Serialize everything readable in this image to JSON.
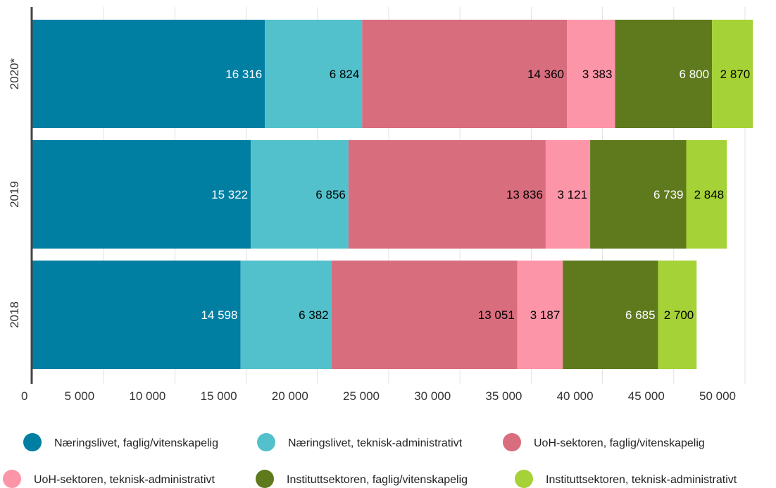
{
  "chart_data": {
    "type": "bar",
    "orientation": "horizontal",
    "stacked": true,
    "categories": [
      "2020*",
      "2019",
      "2018"
    ],
    "series": [
      {
        "name": "Næringslivet, faglig/vitenskapelig",
        "color": "#007fa3",
        "label_color": "#ffffff",
        "values": [
          16316,
          15322,
          14598
        ]
      },
      {
        "name": "Næringslivet, teknisk-administrativt",
        "color": "#52c1cc",
        "label_color": "#000000",
        "values": [
          6824,
          6856,
          6382
        ]
      },
      {
        "name": "UoH-sektoren, faglig/vitenskapelig",
        "color": "#d86d7d",
        "label_color": "#000000",
        "values": [
          14360,
          13836,
          13051
        ]
      },
      {
        "name": "UoH-sektoren, teknisk-administrativt",
        "color": "#fd95a8",
        "label_color": "#000000",
        "values": [
          3383,
          3121,
          3187
        ]
      },
      {
        "name": "Instituttsektoren, faglig/vitenskapelig",
        "color": "#5e7a1d",
        "label_color": "#ffffff",
        "values": [
          6800,
          6739,
          6685
        ]
      },
      {
        "name": "Instituttsektoren, teknisk-administrativt",
        "color": "#a5d236",
        "label_color": "#000000",
        "values": [
          2870,
          2848,
          2700
        ]
      }
    ],
    "data_labels": [
      [
        "16 316",
        "15 322",
        "14 598"
      ],
      [
        "6 824",
        "6 856",
        "6 382"
      ],
      [
        "14 360",
        "13 836",
        "13 051"
      ],
      [
        "3 383",
        "3 121",
        "3 187"
      ],
      [
        "6 800",
        "6 739",
        "6 685"
      ],
      [
        "2 870",
        "2 848",
        "2 700"
      ]
    ],
    "xlim": [
      0,
      50000
    ],
    "x_ticks": [
      0,
      5000,
      10000,
      15000,
      20000,
      25000,
      30000,
      35000,
      40000,
      45000,
      50000
    ],
    "x_tick_labels": [
      "0",
      "5 000",
      "10 000",
      "15 000",
      "20 000",
      "25 000",
      "30 000",
      "35 000",
      "40 000",
      "45 000",
      "50 000"
    ],
    "grid": true,
    "legend_position": "bottom",
    "title": "",
    "xlabel": "",
    "ylabel": ""
  }
}
